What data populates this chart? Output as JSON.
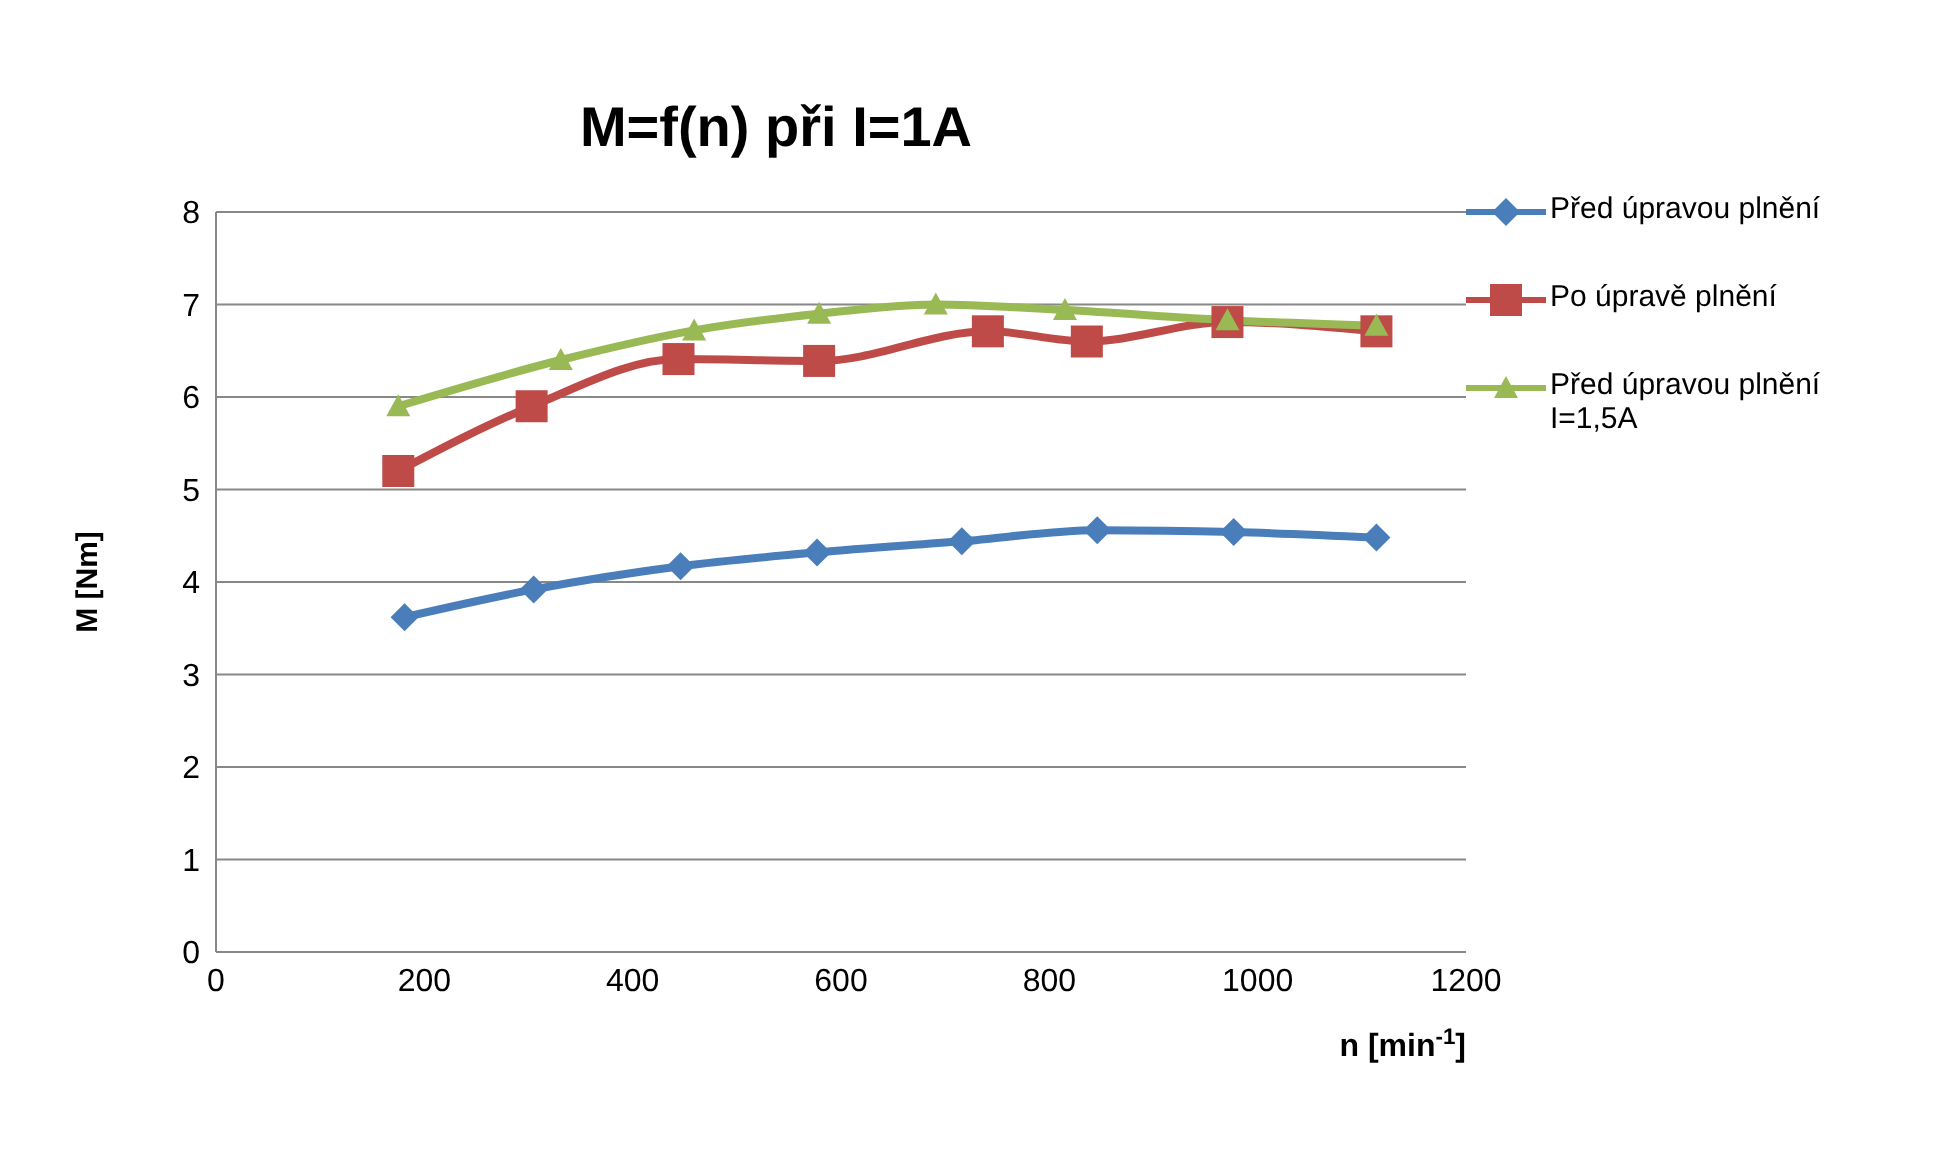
{
  "chart_data": {
    "type": "line",
    "title": "M=f(n) při I=1A",
    "xlabel": "n [min$^{-1}$]",
    "ylabel": "M [Nm]",
    "xlim": [
      0,
      1200
    ],
    "xticks": [
      0,
      200,
      400,
      600,
      800,
      1000,
      1200
    ],
    "ylim": [
      0,
      8
    ],
    "yticks": [
      0,
      1,
      2,
      3,
      4,
      5,
      6,
      7,
      8
    ],
    "grid": "y",
    "legend": "right",
    "series": [
      {
        "name": "Před úpravou plnění",
        "color": "#4a7ebb",
        "marker": "diamond",
        "x": [
          181,
          305,
          446,
          577,
          716,
          846,
          977,
          1114
        ],
        "values": [
          3.62,
          3.92,
          4.17,
          4.32,
          4.44,
          4.56,
          4.54,
          4.48
        ]
      },
      {
        "name": "Po úpravě plnění",
        "color": "#be4b48",
        "marker": "square",
        "x": [
          175,
          303,
          444,
          579,
          741,
          836,
          971,
          1114
        ],
        "values": [
          5.2,
          5.9,
          6.41,
          6.39,
          6.71,
          6.6,
          6.81,
          6.71
        ]
      },
      {
        "name": "Před úpravou plnění I=1,5A",
        "color": "#98b954",
        "marker": "triangle",
        "x": [
          175,
          331,
          459,
          579,
          691,
          815,
          971,
          1114
        ],
        "values": [
          5.9,
          6.4,
          6.72,
          6.9,
          7.0,
          6.94,
          6.83,
          6.77
        ]
      }
    ]
  }
}
